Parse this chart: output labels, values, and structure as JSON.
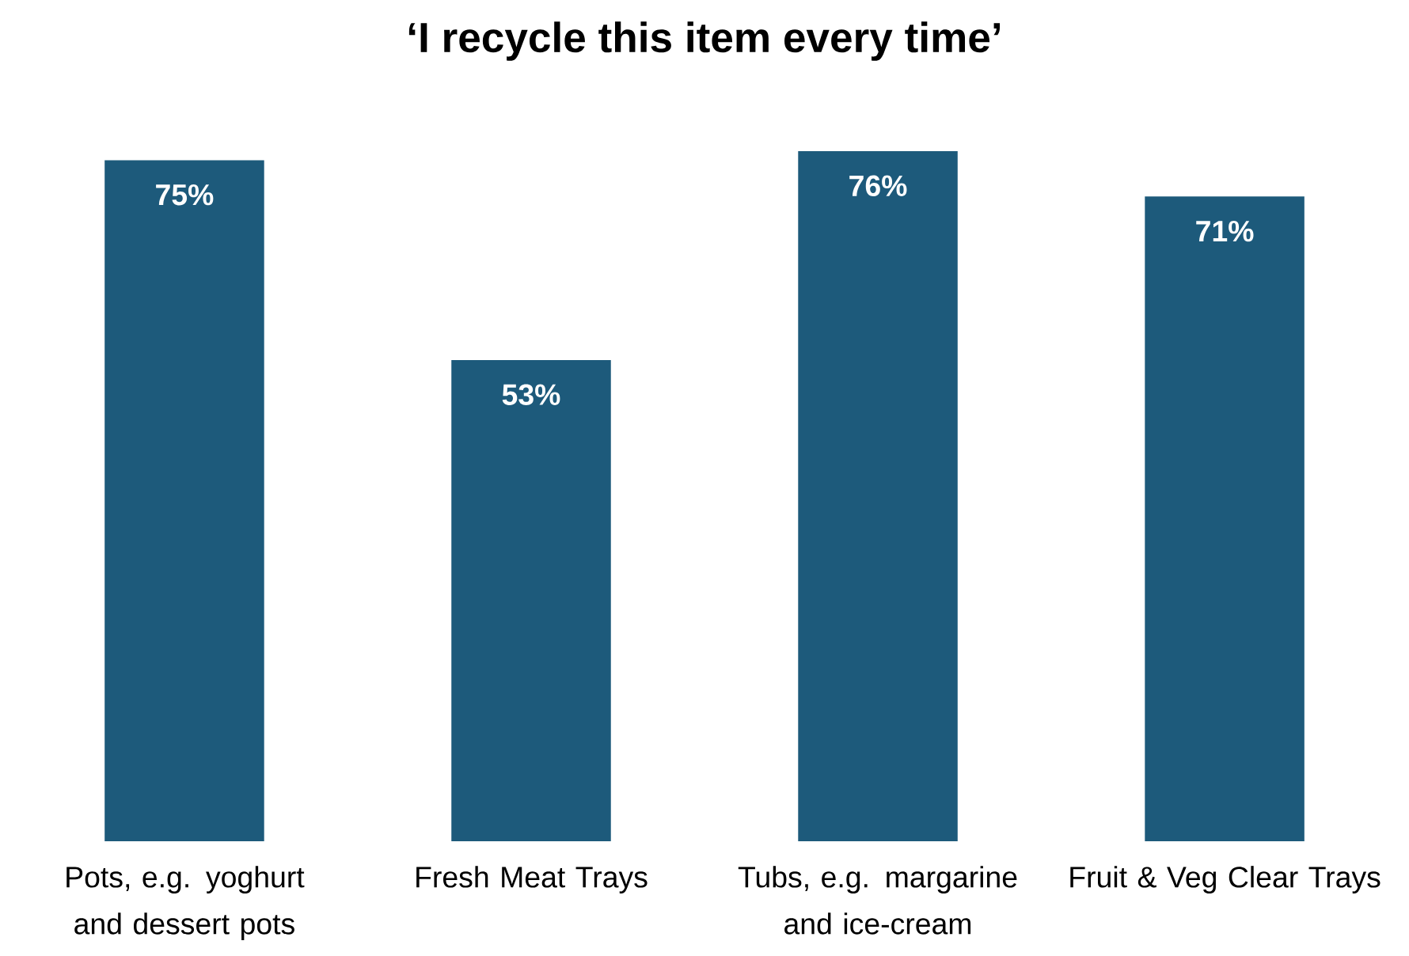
{
  "chart_data": {
    "type": "bar",
    "title": "‘I recycle this item every time’",
    "categories": [
      "Pots, e.g. yoghurt and dessert pots",
      "Fresh Meat Trays",
      "Tubs, e.g. margarine and ice-cream",
      "Fruit & Veg Clear Trays"
    ],
    "values": [
      75,
      53,
      76,
      71
    ],
    "value_labels": [
      "75%",
      "53%",
      "76%",
      "71%"
    ],
    "color": "#1d5a7b",
    "ylim": [
      0,
      76
    ]
  }
}
